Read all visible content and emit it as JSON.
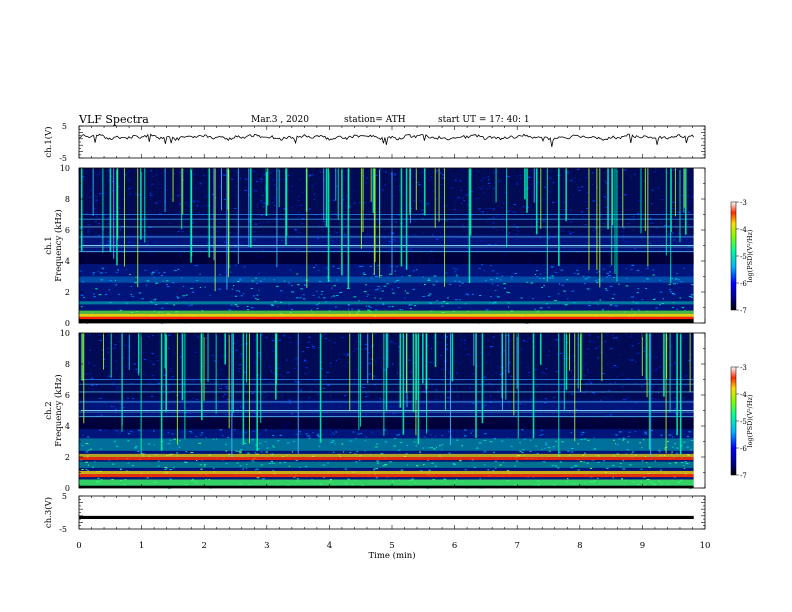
{
  "header": {
    "title": "VLF  Spectra",
    "date": "Mar.3  , 2020",
    "station": "station= ATH",
    "start": "start  UT  =    17: 40: 1"
  },
  "chart_data": [
    {
      "type": "line",
      "panel": "ch1-waveform",
      "ylabel": "ch.1(V)",
      "ylim": [
        -5,
        5
      ],
      "yticks": [
        "5",
        "-5"
      ],
      "xlim": [
        0,
        10
      ],
      "description": "noisy waveform near +1.5 V with small spikes"
    },
    {
      "type": "heatmap",
      "panel": "ch1-spectrogram",
      "ylabel": "ch.1\nFrequency  (kHz)",
      "ylim": [
        0,
        10
      ],
      "yticks": [
        "0",
        "2",
        "4",
        "6",
        "8",
        "10"
      ],
      "xlim": [
        0,
        10
      ],
      "colorbar": {
        "label": "log(PSD)(V²/Hz)",
        "ticks": [
          "-3",
          "-4",
          "-5",
          "-6",
          "-7"
        ],
        "range": [
          -7,
          -3
        ]
      }
    },
    {
      "type": "heatmap",
      "panel": "ch2-spectrogram",
      "ylabel": "ch.2\nFrequency  (kHz)",
      "ylim": [
        0,
        10
      ],
      "yticks": [
        "0",
        "2",
        "4",
        "6",
        "8",
        "10"
      ],
      "xlim": [
        0,
        10
      ],
      "colorbar": {
        "label": "log(PSD)(V²/Hz)",
        "ticks": [
          "-3",
          "-4",
          "-5",
          "-6",
          "-7"
        ],
        "range": [
          -7,
          -3
        ]
      }
    },
    {
      "type": "line",
      "panel": "ch3-waveform",
      "ylabel": "ch.3(V)",
      "ylim": [
        -5,
        5
      ],
      "yticks": [
        "5",
        "-5"
      ],
      "xlim": [
        0,
        10
      ],
      "xlabel": "Time  (min)",
      "xticks": [
        "0",
        "1",
        "2",
        "3",
        "4",
        "5",
        "6",
        "7",
        "8",
        "9",
        "10"
      ],
      "description": "flat thick line near -1.5 V"
    }
  ]
}
